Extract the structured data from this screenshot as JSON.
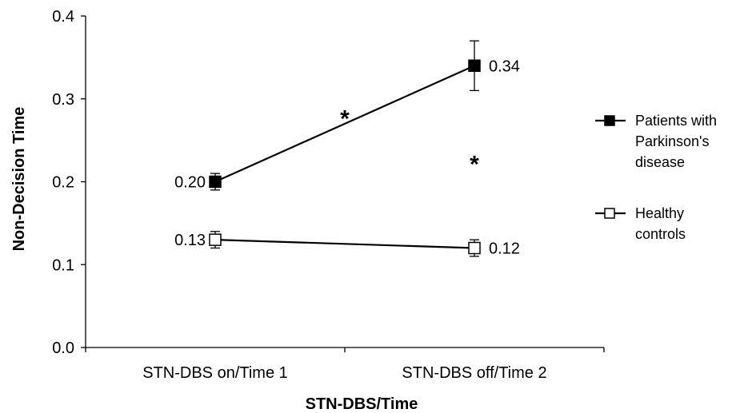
{
  "chart_data": {
    "type": "line",
    "xlabel": "STN-DBS/Time",
    "ylabel": "Non-Decision Time",
    "categories": [
      "STN-DBS on/Time 1",
      "STN-DBS off/Time 2"
    ],
    "ylim": [
      0,
      0.4
    ],
    "yticks": [
      "0.0",
      "0.1",
      "0.2",
      "0.3",
      "0.4"
    ],
    "grid": false,
    "legend_position": "right",
    "series": [
      {
        "name_lines": [
          "Patients with",
          "Parkinson's",
          "disease"
        ],
        "marker": "filled-square",
        "values": [
          0.2,
          0.34
        ],
        "errors": [
          0.01,
          0.03
        ],
        "labels": [
          "0.20",
          "0.34"
        ]
      },
      {
        "name_lines": [
          "Healthy",
          "controls"
        ],
        "marker": "open-square",
        "values": [
          0.13,
          0.12
        ],
        "errors": [
          0.01,
          0.01
        ],
        "labels": [
          "0.13",
          "0.12"
        ]
      }
    ],
    "annotations": [
      {
        "text": "*",
        "x": 0.5,
        "y": 0.28
      },
      {
        "text": "*",
        "x": 1,
        "y": 0.225
      }
    ]
  }
}
